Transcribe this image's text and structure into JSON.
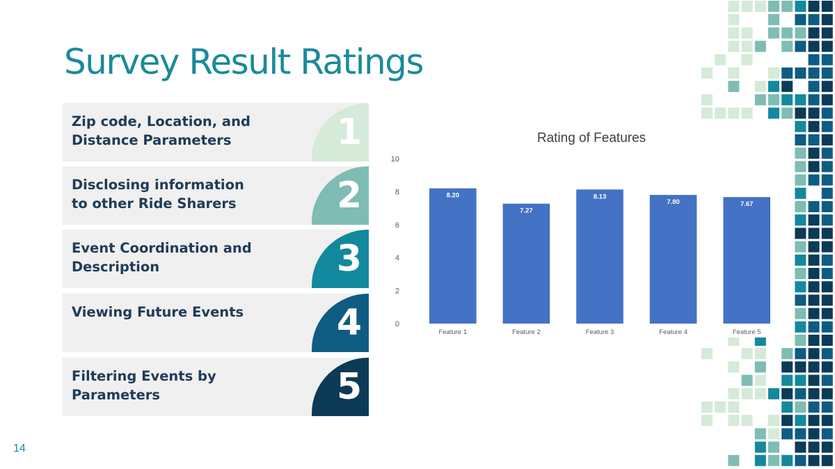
{
  "title": "Survey Result Ratings",
  "page_number": "14",
  "features": [
    {
      "number": "1",
      "lines": [
        "Zip code, Location, and",
        "Distance Parameters"
      ],
      "tab_color": "#d5ead8",
      "num_color": "#ffffff"
    },
    {
      "number": "2",
      "lines": [
        "Disclosing information",
        "to other Ride Sharers"
      ],
      "tab_color": "#7fbcb3",
      "num_color": "#ffffff"
    },
    {
      "number": "3",
      "lines": [
        "Event Coordination and",
        "Description"
      ],
      "tab_color": "#12899e",
      "num_color": "#ffffff"
    },
    {
      "number": "4",
      "lines": [
        "Viewing Future Events"
      ],
      "tab_color": "#0f5c82",
      "num_color": "#ffffff"
    },
    {
      "number": "5",
      "lines": [
        "Filtering Events by",
        "Parameters"
      ],
      "tab_color": "#0d3a56",
      "num_color": "#ffffff"
    }
  ],
  "colors": {
    "title": "#1a8a9a",
    "feature_text": "#1f3b57",
    "feature_bg": "#eff0ef",
    "bar": "#4472c4",
    "mosaic": [
      "#d5ead8",
      "#7fbcb3",
      "#12899e",
      "#0f5c82",
      "#0d3a56"
    ]
  },
  "chart_data": {
    "type": "bar",
    "title": "Rating of Features",
    "categories": [
      "Feature 1",
      "Feature 2",
      "Feature 3",
      "Feature 4",
      "Feature 5"
    ],
    "values": [
      8.2,
      7.27,
      8.13,
      7.8,
      7.67
    ],
    "value_labels": [
      "8.20",
      "7.27",
      "8.13",
      "7.80",
      "7.67"
    ],
    "ylim": [
      0,
      10
    ],
    "yticks": [
      0,
      2,
      4,
      6,
      8,
      10
    ],
    "xlabel": "",
    "ylabel": "",
    "grid": false,
    "legend": "none"
  }
}
